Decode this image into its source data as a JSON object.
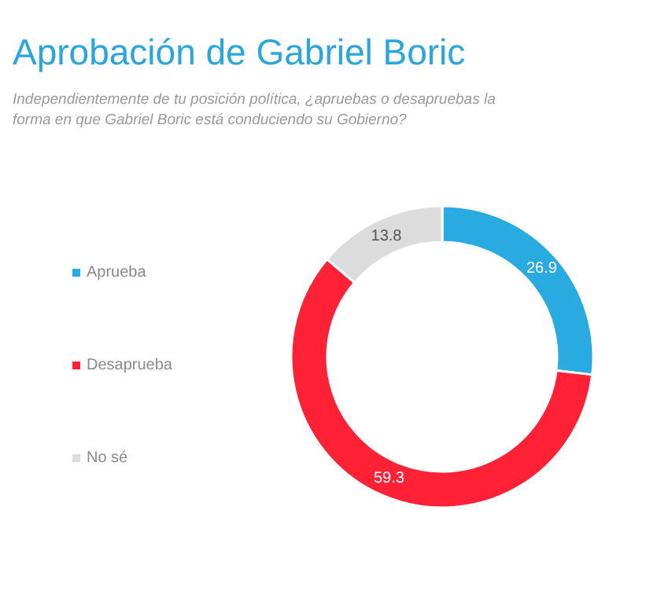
{
  "chart_data": {
    "type": "donut",
    "title": "Aprobación de Gabriel Boric",
    "subtitle": "Independientemente de tu posición política, ¿apruebas o desapruebas la forma en que Gabriel Boric está conduciendo su Gobierno?",
    "categories": [
      "Aprueba",
      "Desaprueba",
      "No sé"
    ],
    "values": [
      26.9,
      59.3,
      13.8
    ],
    "colors": [
      "#29abe2",
      "#ff2236",
      "#dcdcdc"
    ],
    "data_labels": true,
    "legend": "left"
  }
}
